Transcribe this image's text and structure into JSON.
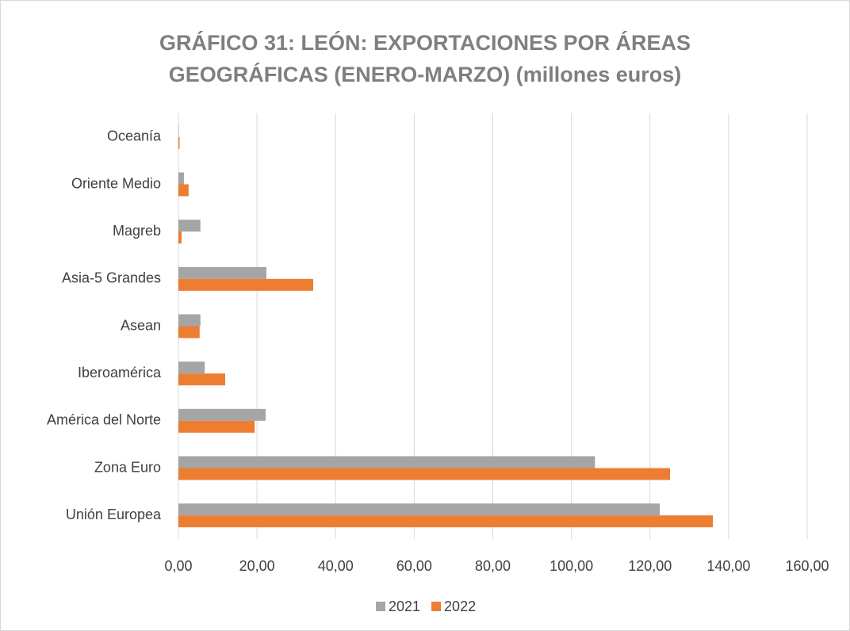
{
  "chart_data": {
    "type": "bar",
    "orientation": "horizontal",
    "title": "GRÁFICO 31: LEÓN: EXPORTACIONES POR ÁREAS GEOGRÁFICAS (ENERO-MARZO) (millones euros)",
    "categories": [
      "Unión Europea",
      "Zona Euro",
      "América del Norte",
      "Iberoamérica",
      "Asean",
      "Asia-5 Grandes",
      "Magreb",
      "Oriente Medio",
      "Oceanía"
    ],
    "series": [
      {
        "name": "2021",
        "color": "#a5a5a5",
        "values": [
          122.5,
          106.0,
          22.2,
          6.7,
          5.6,
          22.4,
          5.6,
          1.4,
          0.1
        ]
      },
      {
        "name": "2022",
        "color": "#ed7d31",
        "values": [
          136.0,
          125.1,
          19.4,
          11.9,
          5.4,
          34.3,
          0.8,
          2.6,
          0.3
        ]
      }
    ],
    "xlim": [
      0,
      160
    ],
    "xticks": [
      {
        "value": 0,
        "label": "0,00"
      },
      {
        "value": 20,
        "label": "20,00"
      },
      {
        "value": 40,
        "label": "40,00"
      },
      {
        "value": 60,
        "label": "60,00"
      },
      {
        "value": 80,
        "label": "80,00"
      },
      {
        "value": 100,
        "label": "100,00"
      },
      {
        "value": 120,
        "label": "120,00"
      },
      {
        "value": 140,
        "label": "140,00"
      },
      {
        "value": 160,
        "label": "160,00"
      }
    ],
    "grid": true,
    "legend": "bottom"
  }
}
